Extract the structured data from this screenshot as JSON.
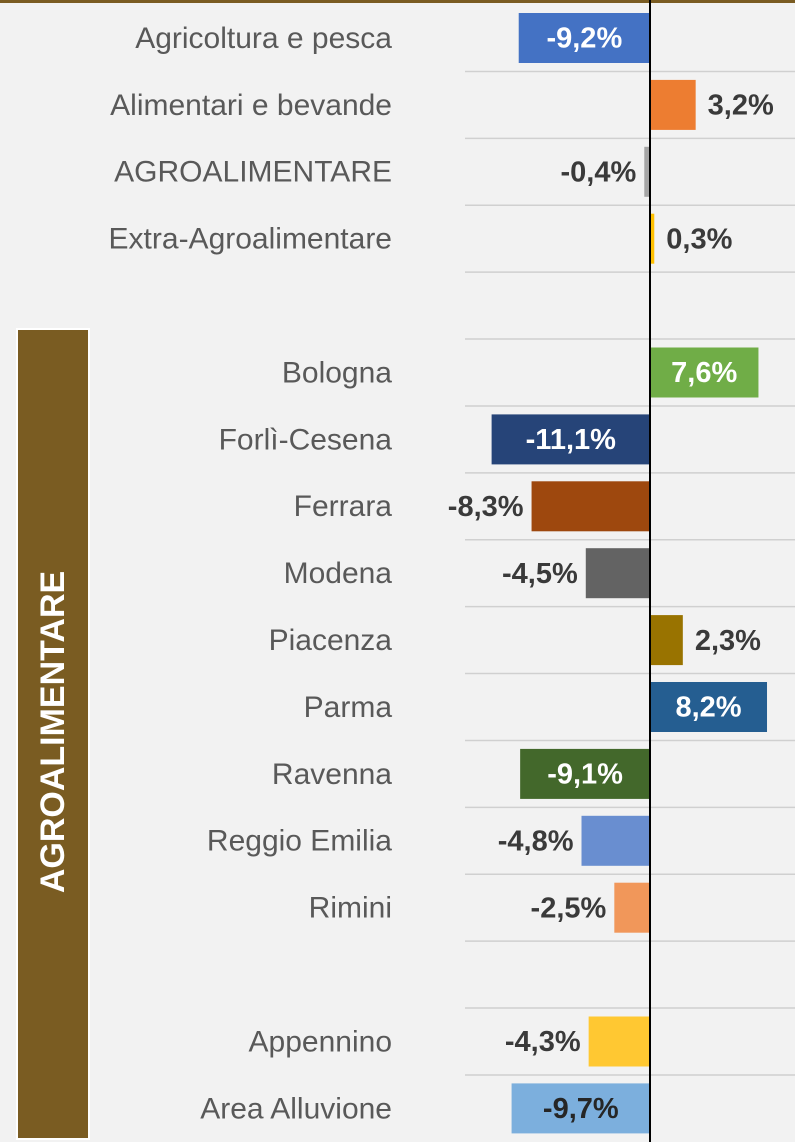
{
  "chart_data": {
    "type": "bar",
    "orientation": "horizontal",
    "categories": [
      "Agricoltura e pesca",
      "Alimentari e bevande",
      "AGROALIMENTARE",
      "Extra-Agroalimentare",
      null,
      "Bologna",
      "Forlì-Cesena",
      "Ferrara",
      "Modena",
      "Piacenza",
      "Parma",
      "Ravenna",
      "Reggio Emilia",
      "Rimini",
      null,
      "Appennino",
      "Area Alluvione"
    ],
    "values": [
      -9.2,
      3.2,
      -0.4,
      0.3,
      null,
      7.6,
      -11.1,
      -8.3,
      -4.5,
      2.3,
      8.2,
      -9.1,
      -4.8,
      -2.5,
      null,
      -4.3,
      -9.7
    ],
    "value_labels": [
      "-9,2%",
      "3,2%",
      "-0,4%",
      "0,3%",
      null,
      "7,6%",
      "-11,1%",
      "-8,3%",
      "-4,5%",
      "2,3%",
      "8,2%",
      "-9,1%",
      "-4,8%",
      "-2,5%",
      null,
      "-4,3%",
      "-9,7%"
    ],
    "colors": [
      "#4472c4",
      "#ed7d31",
      "#a5a5a5",
      "#ffc000",
      null,
      "#70ad47",
      "#264478",
      "#9e480e",
      "#636363",
      "#997300",
      "#255e91",
      "#43682b",
      "#698ed0",
      "#f1975a",
      null,
      "#ffc832",
      "#7cafdd"
    ],
    "group_label": "AGROALIMENTARE"
  }
}
